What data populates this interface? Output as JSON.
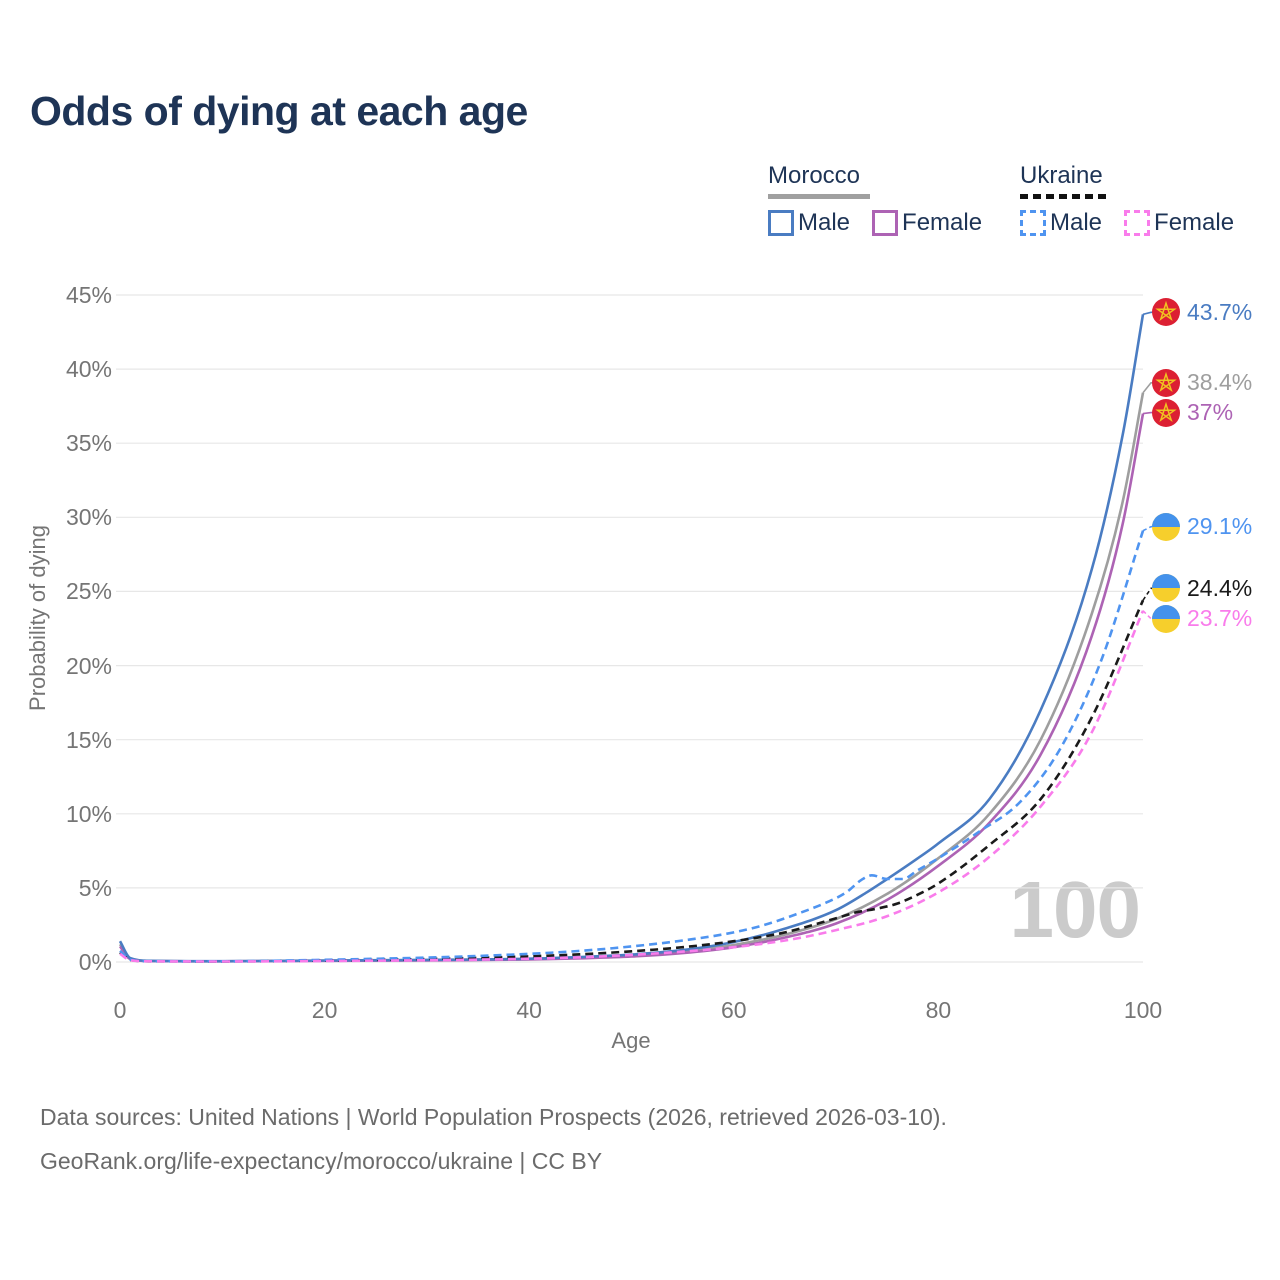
{
  "title": "Odds of dying at each age",
  "legend": {
    "morocco": {
      "label": "Morocco",
      "male": "Male",
      "female": "Female"
    },
    "ukraine": {
      "label": "Ukraine",
      "male": "Male",
      "female": "Female"
    }
  },
  "footer": {
    "line1": "Data sources: United Nations | World Population Prospects (2026, retrieved 2026-03-10).",
    "line2": "GeoRank.org/life-expectancy/morocco/ukraine | CC BY"
  },
  "colors": {
    "title_text": "#1e3456",
    "axis_text": "#757575",
    "grid": "#e7e7e7",
    "watermark": "#cbcbcb",
    "footer_text": "#6b6b6b",
    "morocco_underline": "#a0a0a0",
    "ukraine_underline": "#111111",
    "morocco_flag_red": "#dc2033",
    "morocco_flag_star": "#f0c420",
    "ukraine_flag_blue": "#4492ec",
    "ukraine_flag_yellow": "#f6cf2c"
  },
  "chart_data": {
    "type": "line",
    "title": "Odds of dying at each age",
    "xlabel": "Age",
    "ylabel": "Probability of dying",
    "xlim": [
      0,
      100
    ],
    "ylim": [
      0,
      45
    ],
    "grid": true,
    "legend_position": "top-right",
    "watermark": "100",
    "x_ticks": [
      {
        "v": 0,
        "label": "0"
      },
      {
        "v": 20,
        "label": "20"
      },
      {
        "v": 40,
        "label": "40"
      },
      {
        "v": 60,
        "label": "60"
      },
      {
        "v": 80,
        "label": "80"
      },
      {
        "v": 100,
        "label": "100"
      }
    ],
    "y_ticks": [
      {
        "v": 0,
        "label": "0%"
      },
      {
        "v": 5,
        "label": "5%"
      },
      {
        "v": 10,
        "label": "10%"
      },
      {
        "v": 15,
        "label": "15%"
      },
      {
        "v": 20,
        "label": "20%"
      },
      {
        "v": 25,
        "label": "25%"
      },
      {
        "v": 30,
        "label": "30%"
      },
      {
        "v": 35,
        "label": "35%"
      },
      {
        "v": 40,
        "label": "40%"
      },
      {
        "v": 45,
        "label": "45%"
      }
    ],
    "series": [
      {
        "name": "Morocco",
        "country": "Morocco",
        "sex": "Both",
        "style": "solid",
        "color": "#9e9e9e",
        "flag": "morocco",
        "end_value": 38.4,
        "end_label": "38.4%",
        "label_dy": -10,
        "points": [
          [
            0,
            1.2
          ],
          [
            1,
            0.22
          ],
          [
            3,
            0.07
          ],
          [
            10,
            0.05
          ],
          [
            20,
            0.09
          ],
          [
            30,
            0.12
          ],
          [
            40,
            0.19
          ],
          [
            45,
            0.28
          ],
          [
            50,
            0.42
          ],
          [
            55,
            0.68
          ],
          [
            60,
            1.15
          ],
          [
            65,
            1.85
          ],
          [
            70,
            2.9
          ],
          [
            75,
            4.6
          ],
          [
            80,
            7.0
          ],
          [
            85,
            10.0
          ],
          [
            90,
            15.0
          ],
          [
            95,
            23.5
          ],
          [
            98,
            31.0
          ],
          [
            100,
            38.4
          ]
        ]
      },
      {
        "name": "Morocco Female",
        "country": "Morocco",
        "sex": "Female",
        "style": "solid",
        "color": "#ad63b4",
        "flag": "morocco",
        "end_value": 37,
        "end_label": "37%",
        "label_dy": -1,
        "points": [
          [
            0,
            1.05
          ],
          [
            1,
            0.2
          ],
          [
            3,
            0.06
          ],
          [
            10,
            0.045
          ],
          [
            20,
            0.08
          ],
          [
            30,
            0.11
          ],
          [
            40,
            0.17
          ],
          [
            45,
            0.25
          ],
          [
            50,
            0.37
          ],
          [
            55,
            0.6
          ],
          [
            60,
            1.0
          ],
          [
            65,
            1.65
          ],
          [
            70,
            2.6
          ],
          [
            75,
            4.2
          ],
          [
            80,
            6.5
          ],
          [
            85,
            9.4
          ],
          [
            90,
            14.0
          ],
          [
            95,
            22.0
          ],
          [
            98,
            29.5
          ],
          [
            100,
            37.0
          ]
        ]
      },
      {
        "name": "Morocco Male",
        "country": "Morocco",
        "sex": "Male",
        "style": "solid",
        "color": "#4a7cc2",
        "flag": "morocco",
        "end_value": 43.7,
        "end_label": "43.7%",
        "label_dy": -2,
        "points": [
          [
            0,
            1.4
          ],
          [
            1,
            0.26
          ],
          [
            3,
            0.08
          ],
          [
            10,
            0.055
          ],
          [
            20,
            0.1
          ],
          [
            30,
            0.14
          ],
          [
            40,
            0.22
          ],
          [
            45,
            0.33
          ],
          [
            50,
            0.5
          ],
          [
            55,
            0.8
          ],
          [
            60,
            1.35
          ],
          [
            65,
            2.25
          ],
          [
            70,
            3.5
          ],
          [
            73,
            4.7
          ],
          [
            75,
            5.6
          ],
          [
            78,
            7.0
          ],
          [
            80,
            8.0
          ],
          [
            85,
            11.0
          ],
          [
            90,
            17.0
          ],
          [
            95,
            26.5
          ],
          [
            98,
            35.5
          ],
          [
            100,
            43.7
          ]
        ]
      },
      {
        "name": "Ukraine",
        "country": "Ukraine",
        "sex": "Both",
        "style": "dashed",
        "color": "#1a1a1a",
        "flag": "ukraine",
        "end_value": 24.4,
        "end_label": "24.4%",
        "label_dy": -12,
        "points": [
          [
            0,
            0.65
          ],
          [
            1,
            0.14
          ],
          [
            3,
            0.05
          ],
          [
            10,
            0.04
          ],
          [
            20,
            0.1
          ],
          [
            30,
            0.2
          ],
          [
            40,
            0.38
          ],
          [
            45,
            0.52
          ],
          [
            50,
            0.72
          ],
          [
            55,
            1.0
          ],
          [
            60,
            1.4
          ],
          [
            65,
            2.0
          ],
          [
            70,
            2.95
          ],
          [
            72,
            3.35
          ],
          [
            74,
            3.6
          ],
          [
            76,
            3.95
          ],
          [
            78,
            4.55
          ],
          [
            80,
            5.3
          ],
          [
            85,
            7.9
          ],
          [
            90,
            11.0
          ],
          [
            95,
            16.5
          ],
          [
            100,
            24.4
          ]
        ]
      },
      {
        "name": "Ukraine Male",
        "country": "Ukraine",
        "sex": "Male",
        "style": "dashed",
        "color": "#4f94f0",
        "flag": "ukraine",
        "end_value": 29.1,
        "end_label": "29.1%",
        "label_dy": -4,
        "points": [
          [
            0,
            0.75
          ],
          [
            1,
            0.16
          ],
          [
            3,
            0.055
          ],
          [
            10,
            0.045
          ],
          [
            20,
            0.15
          ],
          [
            30,
            0.3
          ],
          [
            40,
            0.55
          ],
          [
            45,
            0.75
          ],
          [
            50,
            1.05
          ],
          [
            55,
            1.45
          ],
          [
            60,
            2.0
          ],
          [
            63,
            2.5
          ],
          [
            66,
            3.2
          ],
          [
            69,
            4.0
          ],
          [
            71,
            4.7
          ],
          [
            72.5,
            5.55
          ],
          [
            73.5,
            5.85
          ],
          [
            75,
            5.6
          ],
          [
            76.5,
            5.6
          ],
          [
            78,
            6.2
          ],
          [
            80,
            7.0
          ],
          [
            84,
            8.8
          ],
          [
            88,
            10.8
          ],
          [
            92,
            14.5
          ],
          [
            96,
            20.5
          ],
          [
            100,
            29.1
          ]
        ]
      },
      {
        "name": "Ukraine Female",
        "country": "Ukraine",
        "sex": "Female",
        "style": "dashed",
        "color": "#f97ceb",
        "flag": "ukraine",
        "end_value": 23.7,
        "end_label": "23.7%",
        "label_dy": 8,
        "points": [
          [
            0,
            0.55
          ],
          [
            1,
            0.12
          ],
          [
            3,
            0.045
          ],
          [
            10,
            0.035
          ],
          [
            20,
            0.07
          ],
          [
            30,
            0.12
          ],
          [
            40,
            0.22
          ],
          [
            45,
            0.32
          ],
          [
            50,
            0.48
          ],
          [
            55,
            0.7
          ],
          [
            60,
            1.0
          ],
          [
            65,
            1.45
          ],
          [
            70,
            2.15
          ],
          [
            75,
            3.1
          ],
          [
            80,
            4.7
          ],
          [
            85,
            7.1
          ],
          [
            90,
            10.5
          ],
          [
            95,
            15.5
          ],
          [
            100,
            23.7
          ]
        ]
      }
    ]
  }
}
